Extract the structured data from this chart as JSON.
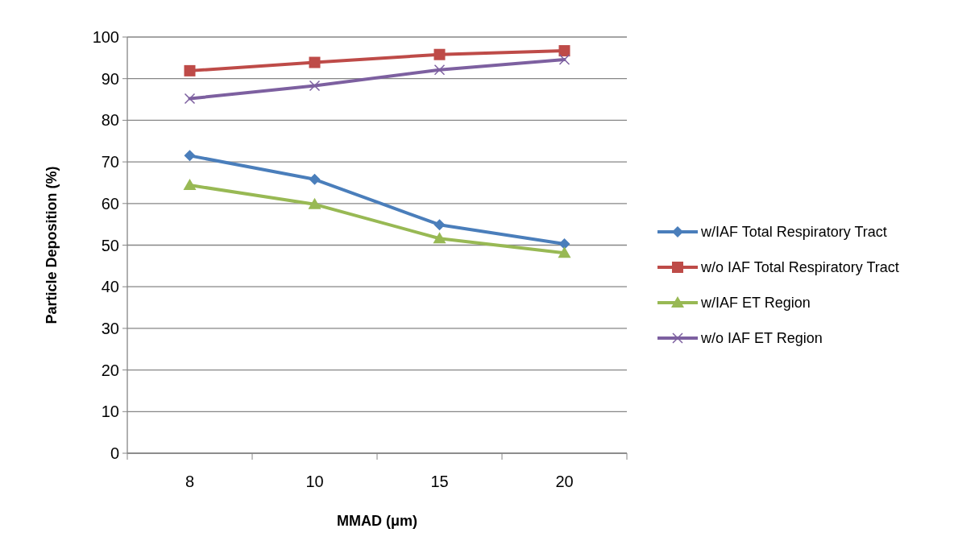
{
  "chart_data": {
    "type": "line",
    "xlabel": "MMAD (μm)",
    "ylabel": "Particle Deposition (%)",
    "categories": [
      "8",
      "10",
      "15",
      "20"
    ],
    "ylim": [
      0,
      100
    ],
    "yticks": [
      0,
      10,
      20,
      30,
      40,
      50,
      60,
      70,
      80,
      90,
      100
    ],
    "grid": "y",
    "legend": "right",
    "series": [
      {
        "name": "w/IAF Total Respiratory Tract",
        "color": "#4a7ebb",
        "marker": "diamond",
        "values": [
          71.5,
          65.8,
          54.9,
          50.3
        ]
      },
      {
        "name": "w/o IAF Total Respiratory Tract",
        "color": "#be4b48",
        "marker": "square",
        "values": [
          91.9,
          93.9,
          95.8,
          96.7
        ]
      },
      {
        "name": "w/IAF ET Region",
        "color": "#98b954",
        "marker": "triangle",
        "values": [
          64.4,
          59.8,
          51.6,
          48.1
        ]
      },
      {
        "name": "w/o IAF ET Region",
        "color": "#7d60a0",
        "marker": "cross",
        "values": [
          85.2,
          88.3,
          92.1,
          94.6
        ]
      }
    ]
  }
}
